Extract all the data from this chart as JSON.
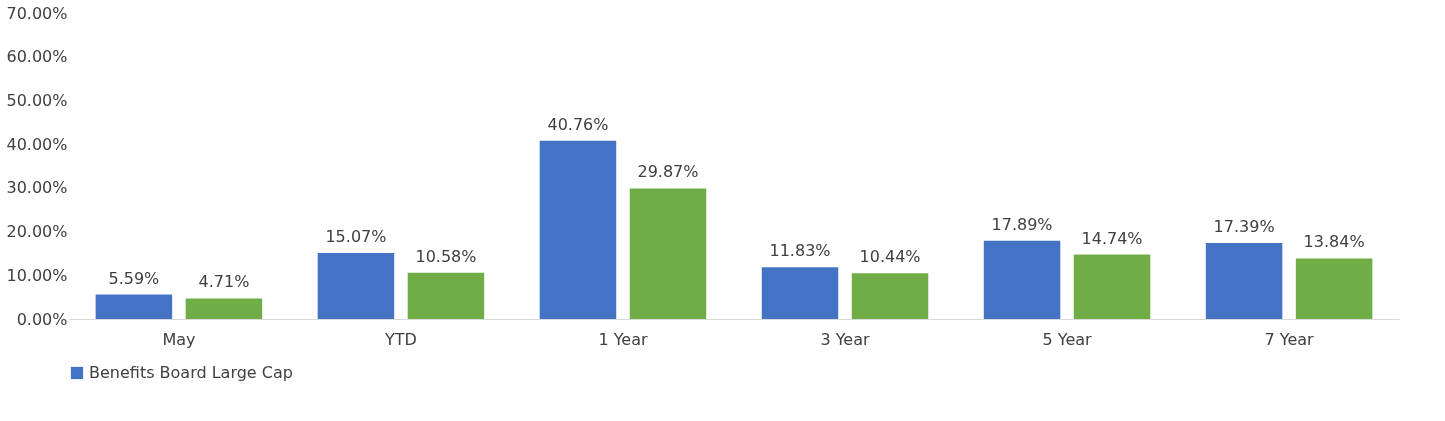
{
  "chart_data": {
    "type": "bar",
    "categories": [
      "May",
      "YTD",
      "1 Year",
      "3 Year",
      "5 Year",
      "7 Year"
    ],
    "series": [
      {
        "name": "Benefits Board Large Cap",
        "color": "#4472c4",
        "values": [
          5.59,
          15.07,
          40.76,
          11.83,
          17.89,
          17.39
        ],
        "value_labels": [
          "5.59%",
          "15.07%",
          "40.76%",
          "11.83%",
          "17.89%",
          "17.39%"
        ]
      },
      {
        "color": "#70ad47",
        "values": [
          4.71,
          10.58,
          29.87,
          10.44,
          14.74,
          13.84
        ],
        "value_labels": [
          "4.71%",
          "10.58%",
          "29.87%",
          "10.44%",
          "14.74%",
          "13.84%"
        ]
      }
    ],
    "ylim": [
      0,
      70
    ],
    "yticks": [
      {
        "value": 0,
        "label": "0.00%"
      },
      {
        "value": 10,
        "label": "10.00%"
      },
      {
        "value": 20,
        "label": "20.00%"
      },
      {
        "value": 30,
        "label": "30.00%"
      },
      {
        "value": 40,
        "label": "40.00%"
      },
      {
        "value": 50,
        "label": "50.00%"
      },
      {
        "value": 60,
        "label": "60.00%"
      },
      {
        "value": 70,
        "label": "70.00%"
      }
    ],
    "grid": false,
    "legend": "bottom"
  }
}
